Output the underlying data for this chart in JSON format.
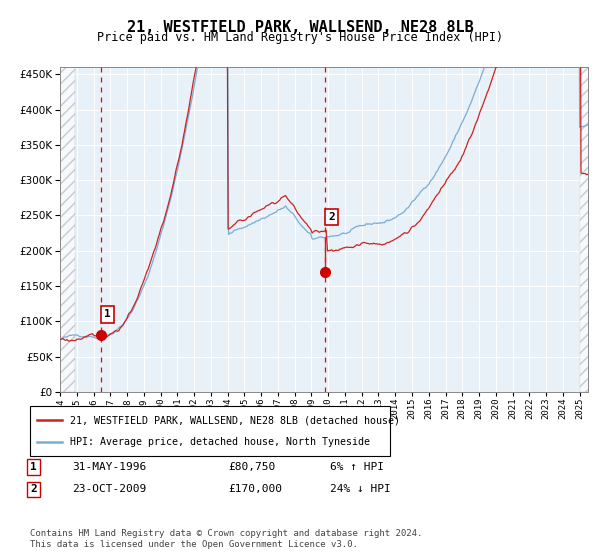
{
  "title": "21, WESTFIELD PARK, WALLSEND, NE28 8LB",
  "subtitle": "Price paid vs. HM Land Registry's House Price Index (HPI)",
  "hpi_color": "#7aadd4",
  "price_color": "#cc2222",
  "point_color": "#cc0000",
  "bg_color": "#ddeeff",
  "plot_bg": "#e8f0f8",
  "grid_color": "#ffffff",
  "ylim": [
    0,
    460000
  ],
  "yticks": [
    0,
    50000,
    100000,
    150000,
    200000,
    250000,
    300000,
    350000,
    400000,
    450000
  ],
  "xlabel": "",
  "transaction1": {
    "date_num": 1996.42,
    "price": 80750,
    "label": "1"
  },
  "transaction2": {
    "date_num": 2009.81,
    "price": 170000,
    "label": "2"
  },
  "legend_line1": "21, WESTFIELD PARK, WALLSEND, NE28 8LB (detached house)",
  "legend_line2": "HPI: Average price, detached house, North Tyneside",
  "table_row1": [
    "1",
    "31-MAY-1996",
    "£80,750",
    "6% ↑ HPI"
  ],
  "table_row2": [
    "2",
    "23-OCT-2009",
    "£170,000",
    "24% ↓ HPI"
  ],
  "footer": "Contains HM Land Registry data © Crown copyright and database right 2024.\nThis data is licensed under the Open Government Licence v3.0.",
  "xmin": 1994.0,
  "xmax": 2025.5
}
